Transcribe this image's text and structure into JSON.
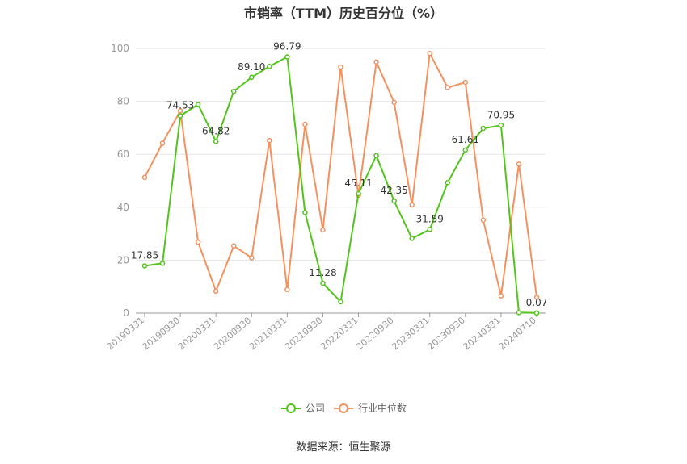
{
  "chart_data": {
    "type": "line",
    "title": "市销率（TTM）历史百分位（%）",
    "xlabel": "",
    "ylabel": "",
    "ylim": [
      0,
      100
    ],
    "yticks": [
      0,
      20,
      40,
      60,
      80,
      100
    ],
    "grid": true,
    "legend_position": "bottom",
    "x": [
      "20190331",
      "20190630",
      "20190930",
      "20191231",
      "20200331",
      "20200630",
      "20200930",
      "20201231",
      "20210331",
      "20210630",
      "20210930",
      "20211231",
      "20220331",
      "20220630",
      "20220930",
      "20221231",
      "20230331",
      "20230630",
      "20230930",
      "20231231",
      "20240331",
      "20240630",
      "20240710"
    ],
    "x_tick_labels": [
      "20190331",
      "20190930",
      "20200331",
      "20200930",
      "20210331",
      "20210930",
      "20220331",
      "20220930",
      "20230331",
      "20230930",
      "20240331",
      "20240710"
    ],
    "series": [
      {
        "name": "公司",
        "color": "#52c41a",
        "values": [
          17.85,
          18.8,
          74.53,
          78.8,
          64.82,
          83.8,
          89.1,
          93.2,
          96.79,
          38.0,
          11.28,
          4.3,
          45.11,
          59.5,
          42.35,
          28.2,
          31.59,
          49.3,
          61.61,
          69.8,
          70.95,
          0.2,
          0.07
        ],
        "labels": {
          "0": "17.85",
          "2": "74.53",
          "4": "64.82",
          "6": "89.10",
          "8": "96.79",
          "10": "11.28",
          "12": "45.11",
          "14": "42.35",
          "16": "31.59",
          "18": "61.61",
          "20": "70.95",
          "22": "0.07"
        }
      },
      {
        "name": "行业中位数",
        "color": "#f4915e",
        "values": [
          51.3,
          64.2,
          76.4,
          26.8,
          8.3,
          25.4,
          20.9,
          65.2,
          8.9,
          71.3,
          31.4,
          93.0,
          44.5,
          94.9,
          79.6,
          40.9,
          98.1,
          85.2,
          87.2,
          35.1,
          6.5,
          56.3,
          6.0
        ]
      }
    ]
  },
  "source_text": "数据来源：恒生聚源"
}
